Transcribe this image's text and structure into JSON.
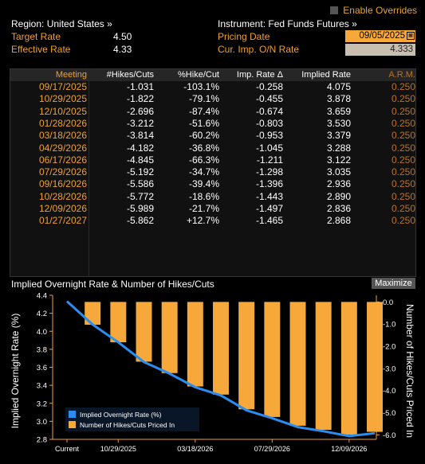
{
  "overrides": {
    "label": "Enable Overrides"
  },
  "header": {
    "region_label": "Region: United States »",
    "instrument_label": "Instrument: Fed Funds Futures »",
    "target_rate_label": "Target Rate",
    "target_rate_value": "4.50",
    "effective_rate_label": "Effective Rate",
    "effective_rate_value": "4.33",
    "pricing_date_label": "Pricing Date",
    "pricing_date_value": "09/05/2025",
    "cur_imp_label": "Cur. Imp. O/N Rate",
    "cur_imp_value": "4.333"
  },
  "table": {
    "headers": [
      "Meeting",
      "#Hikes/Cuts",
      "%Hike/Cut",
      "Imp. Rate Δ",
      "Implied Rate",
      "A.R.M."
    ],
    "rows": [
      [
        "09/17/2025",
        "-1.031",
        "-103.1%",
        "-0.258",
        "4.075",
        "0.250"
      ],
      [
        "10/29/2025",
        "-1.822",
        "-79.1%",
        "-0.455",
        "3.878",
        "0.250"
      ],
      [
        "12/10/2025",
        "-2.696",
        "-87.4%",
        "-0.674",
        "3.659",
        "0.250"
      ],
      [
        "01/28/2026",
        "-3.212",
        "-51.6%",
        "-0.803",
        "3.530",
        "0.250"
      ],
      [
        "03/18/2026",
        "-3.814",
        "-60.2%",
        "-0.953",
        "3.379",
        "0.250"
      ],
      [
        "04/29/2026",
        "-4.182",
        "-36.8%",
        "-1.045",
        "3.288",
        "0.250"
      ],
      [
        "06/17/2026",
        "-4.845",
        "-66.3%",
        "-1.211",
        "3.122",
        "0.250"
      ],
      [
        "07/29/2026",
        "-5.192",
        "-34.7%",
        "-1.298",
        "3.035",
        "0.250"
      ],
      [
        "09/16/2026",
        "-5.586",
        "-39.4%",
        "-1.396",
        "2.936",
        "0.250"
      ],
      [
        "10/28/2026",
        "-5.772",
        "-18.6%",
        "-1.443",
        "2.890",
        "0.250"
      ],
      [
        "12/09/2026",
        "-5.989",
        "-21.7%",
        "-1.497",
        "2.836",
        "0.250"
      ],
      [
        "01/27/2027",
        "-5.862",
        "+12.7%",
        "-1.465",
        "2.868",
        "0.250"
      ]
    ]
  },
  "chart": {
    "title": "Implied Overnight Rate & Number of Hikes/Cuts",
    "maximize_label": "Maximize",
    "colors": {
      "line": "#2a8ef0",
      "bars": "#f7a83a",
      "axis": "#f0a030"
    }
  },
  "chart_data": {
    "type": "bar",
    "categories": [
      "Current",
      "09/17/2025",
      "10/29/2025",
      "12/10/2025",
      "01/28/2026",
      "03/18/2026",
      "04/29/2026",
      "06/17/2026",
      "07/29/2026",
      "09/16/2026",
      "10/28/2026",
      "12/09/2026",
      "01/27/2027"
    ],
    "x_tick_labels": [
      "Current",
      "10/29/2025",
      "03/18/2026",
      "07/29/2026",
      "12/09/2026"
    ],
    "series": [
      {
        "name": "Implied Overnight Rate (%)",
        "type": "line",
        "axis": "left",
        "values": [
          4.333,
          4.075,
          3.878,
          3.659,
          3.53,
          3.379,
          3.288,
          3.122,
          3.035,
          2.936,
          2.89,
          2.836,
          2.868
        ]
      },
      {
        "name": "Number of Hikes/Cuts Priced In",
        "type": "bar",
        "axis": "right",
        "values": [
          0,
          -1.031,
          -1.822,
          -2.696,
          -3.212,
          -3.814,
          -4.182,
          -4.845,
          -5.192,
          -5.586,
          -5.772,
          -5.989,
          -5.862
        ]
      }
    ],
    "ylabel_left": "Implied Overnight Rate (%)",
    "ylabel_right": "Number of Hikes/Cuts Priced In",
    "ylim_left": [
      2.8,
      4.4
    ],
    "ylim_right": [
      -6.2,
      0.3
    ],
    "yticks_left": [
      "4.4",
      "4.2",
      "4.0",
      "3.8",
      "3.6",
      "3.4",
      "3.2",
      "3.0",
      "2.8"
    ],
    "yticks_right": [
      "0.0",
      "-1.0",
      "-2.0",
      "-3.0",
      "-4.0",
      "-5.0",
      "-6.0"
    ],
    "legend": [
      "Implied Overnight Rate (%)",
      "Number of Hikes/Cuts Priced In"
    ],
    "legend_position": "bottom-left",
    "grid": false
  }
}
